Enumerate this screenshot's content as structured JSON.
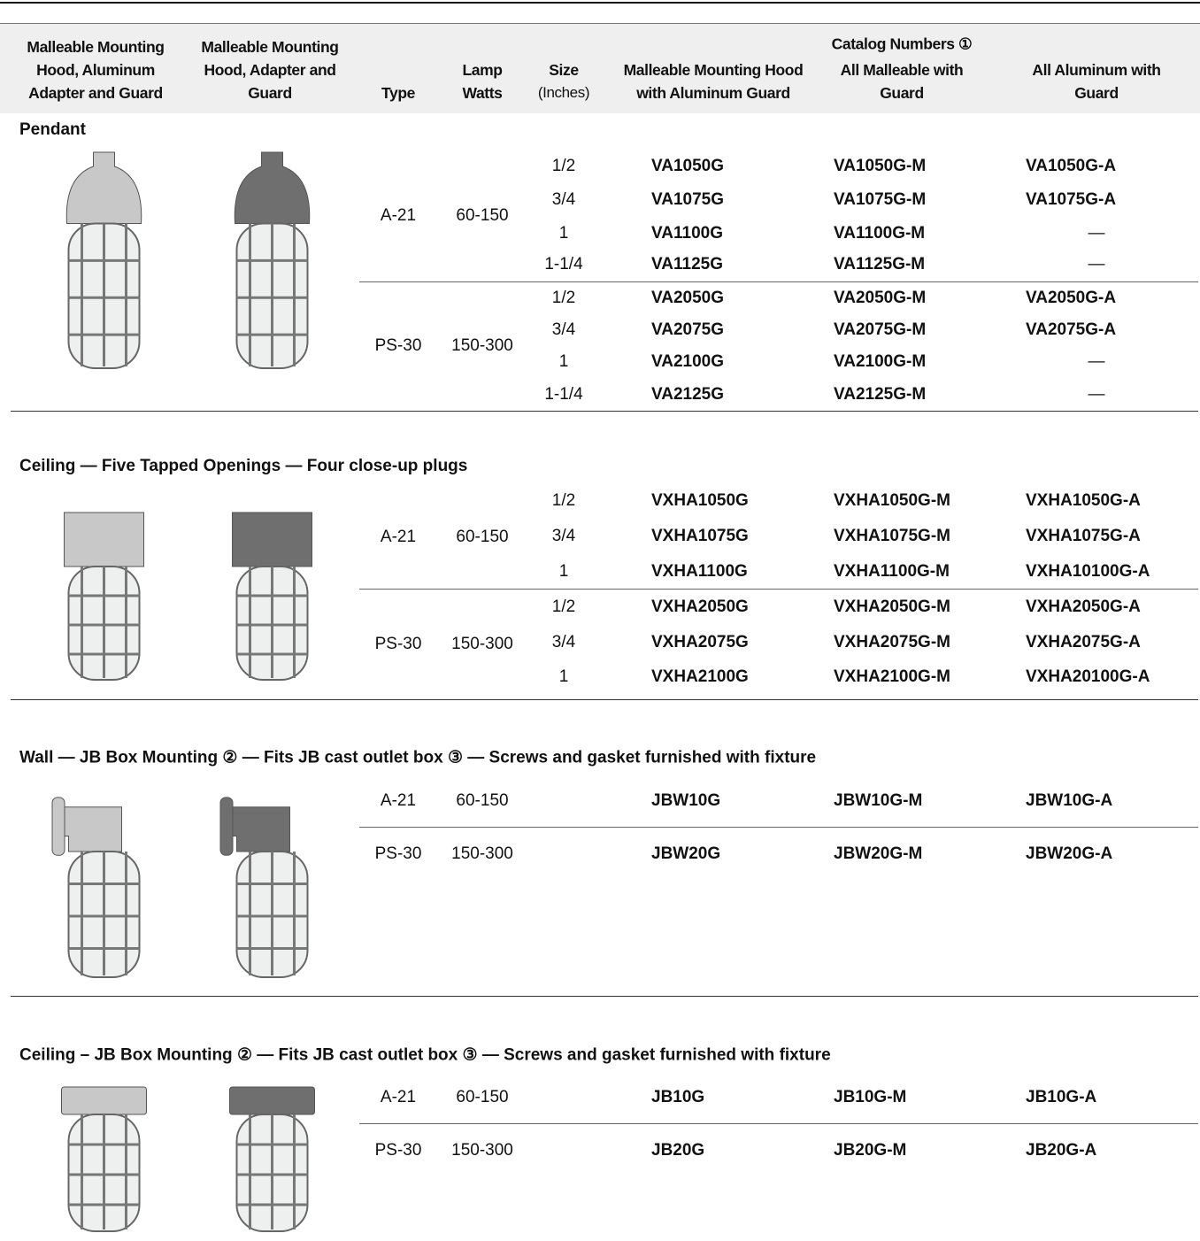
{
  "header": {
    "catalog_numbers": "Catalog Numbers ①",
    "columns": [
      "Malleable Mounting Hood, Aluminum Adapter and Guard",
      "Malleable Mounting Hood, Adapter and Guard",
      "Type",
      "Lamp Watts",
      "Size",
      "Malleable Mounting Hood with Aluminum Guard",
      "All Malleable with Guard",
      "All Aluminum with Guard"
    ],
    "size_unit": "(Inches)"
  },
  "sections": [
    {
      "title": "Pendant",
      "groups": [
        {
          "type": "A-21",
          "watts": "60-150",
          "rows": [
            {
              "size": "1/2",
              "catalog": [
                "VA1050G",
                "VA1050G-M",
                "VA1050G-A"
              ]
            },
            {
              "size": "3/4",
              "catalog": [
                "VA1075G",
                "VA1075G-M",
                "VA1075G-A"
              ]
            },
            {
              "size": "1",
              "catalog": [
                "VA1100G",
                "VA1100G-M",
                "—"
              ]
            },
            {
              "size": "1-1/4",
              "catalog": [
                "VA1125G",
                "VA1125G-M",
                "—"
              ]
            }
          ]
        },
        {
          "type": "PS-30",
          "watts": "150-300",
          "rows": [
            {
              "size": "1/2",
              "catalog": [
                "VA2050G",
                "VA2050G-M",
                "VA2050G-A"
              ]
            },
            {
              "size": "3/4",
              "catalog": [
                "VA2075G",
                "VA2075G-M",
                "VA2075G-A"
              ]
            },
            {
              "size": "1",
              "catalog": [
                "VA2100G",
                "VA2100G-M",
                "—"
              ]
            },
            {
              "size": "1-1/4",
              "catalog": [
                "VA2125G",
                "VA2125G-M",
                "—"
              ]
            }
          ]
        }
      ]
    },
    {
      "title": "Ceiling — Five Tapped Openings — Four close-up plugs",
      "groups": [
        {
          "type": "A-21",
          "watts": "60-150",
          "rows": [
            {
              "size": "1/2",
              "catalog": [
                "VXHA1050G",
                "VXHA1050G-M",
                "VXHA1050G-A"
              ]
            },
            {
              "size": "3/4",
              "catalog": [
                "VXHA1075G",
                "VXHA1075G-M",
                "VXHA1075G-A"
              ]
            },
            {
              "size": "1",
              "catalog": [
                "VXHA1100G",
                "VXHA1100G-M",
                "VXHA10100G-A"
              ]
            }
          ]
        },
        {
          "type": "PS-30",
          "watts": "150-300",
          "rows": [
            {
              "size": "1/2",
              "catalog": [
                "VXHA2050G",
                "VXHA2050G-M",
                "VXHA2050G-A"
              ]
            },
            {
              "size": "3/4",
              "catalog": [
                "VXHA2075G",
                "VXHA2075G-M",
                "VXHA2075G-A"
              ]
            },
            {
              "size": "1",
              "catalog": [
                "VXHA2100G",
                "VXHA2100G-M",
                "VXHA20100G-A"
              ]
            }
          ]
        }
      ]
    },
    {
      "title": "Wall — JB Box Mounting ② — Fits JB cast outlet box ③ — Screws and gasket furnished with fixture",
      "groups": [
        {
          "type": "A-21",
          "watts": "60-150",
          "rows": [
            {
              "catalog": [
                "JBW10G",
                "JBW10G-M",
                "JBW10G-A"
              ]
            }
          ]
        },
        {
          "type": "PS-30",
          "watts": "150-300",
          "rows": [
            {
              "catalog": [
                "JBW20G",
                "JBW20G-M",
                "JBW20G-A"
              ]
            }
          ]
        }
      ]
    },
    {
      "title": "Ceiling – JB Box Mounting ② — Fits JB cast outlet box ③ — Screws and gasket furnished with fixture",
      "groups": [
        {
          "type": "A-21",
          "watts": "60-150",
          "rows": [
            {
              "catalog": [
                "JB10G",
                "JB10G-M",
                "JB10G-A"
              ]
            }
          ]
        },
        {
          "type": "PS-30",
          "watts": "150-300",
          "rows": [
            {
              "catalog": [
                "JB20G",
                "JB20G-M",
                "JB20G-A"
              ]
            }
          ]
        }
      ]
    }
  ]
}
